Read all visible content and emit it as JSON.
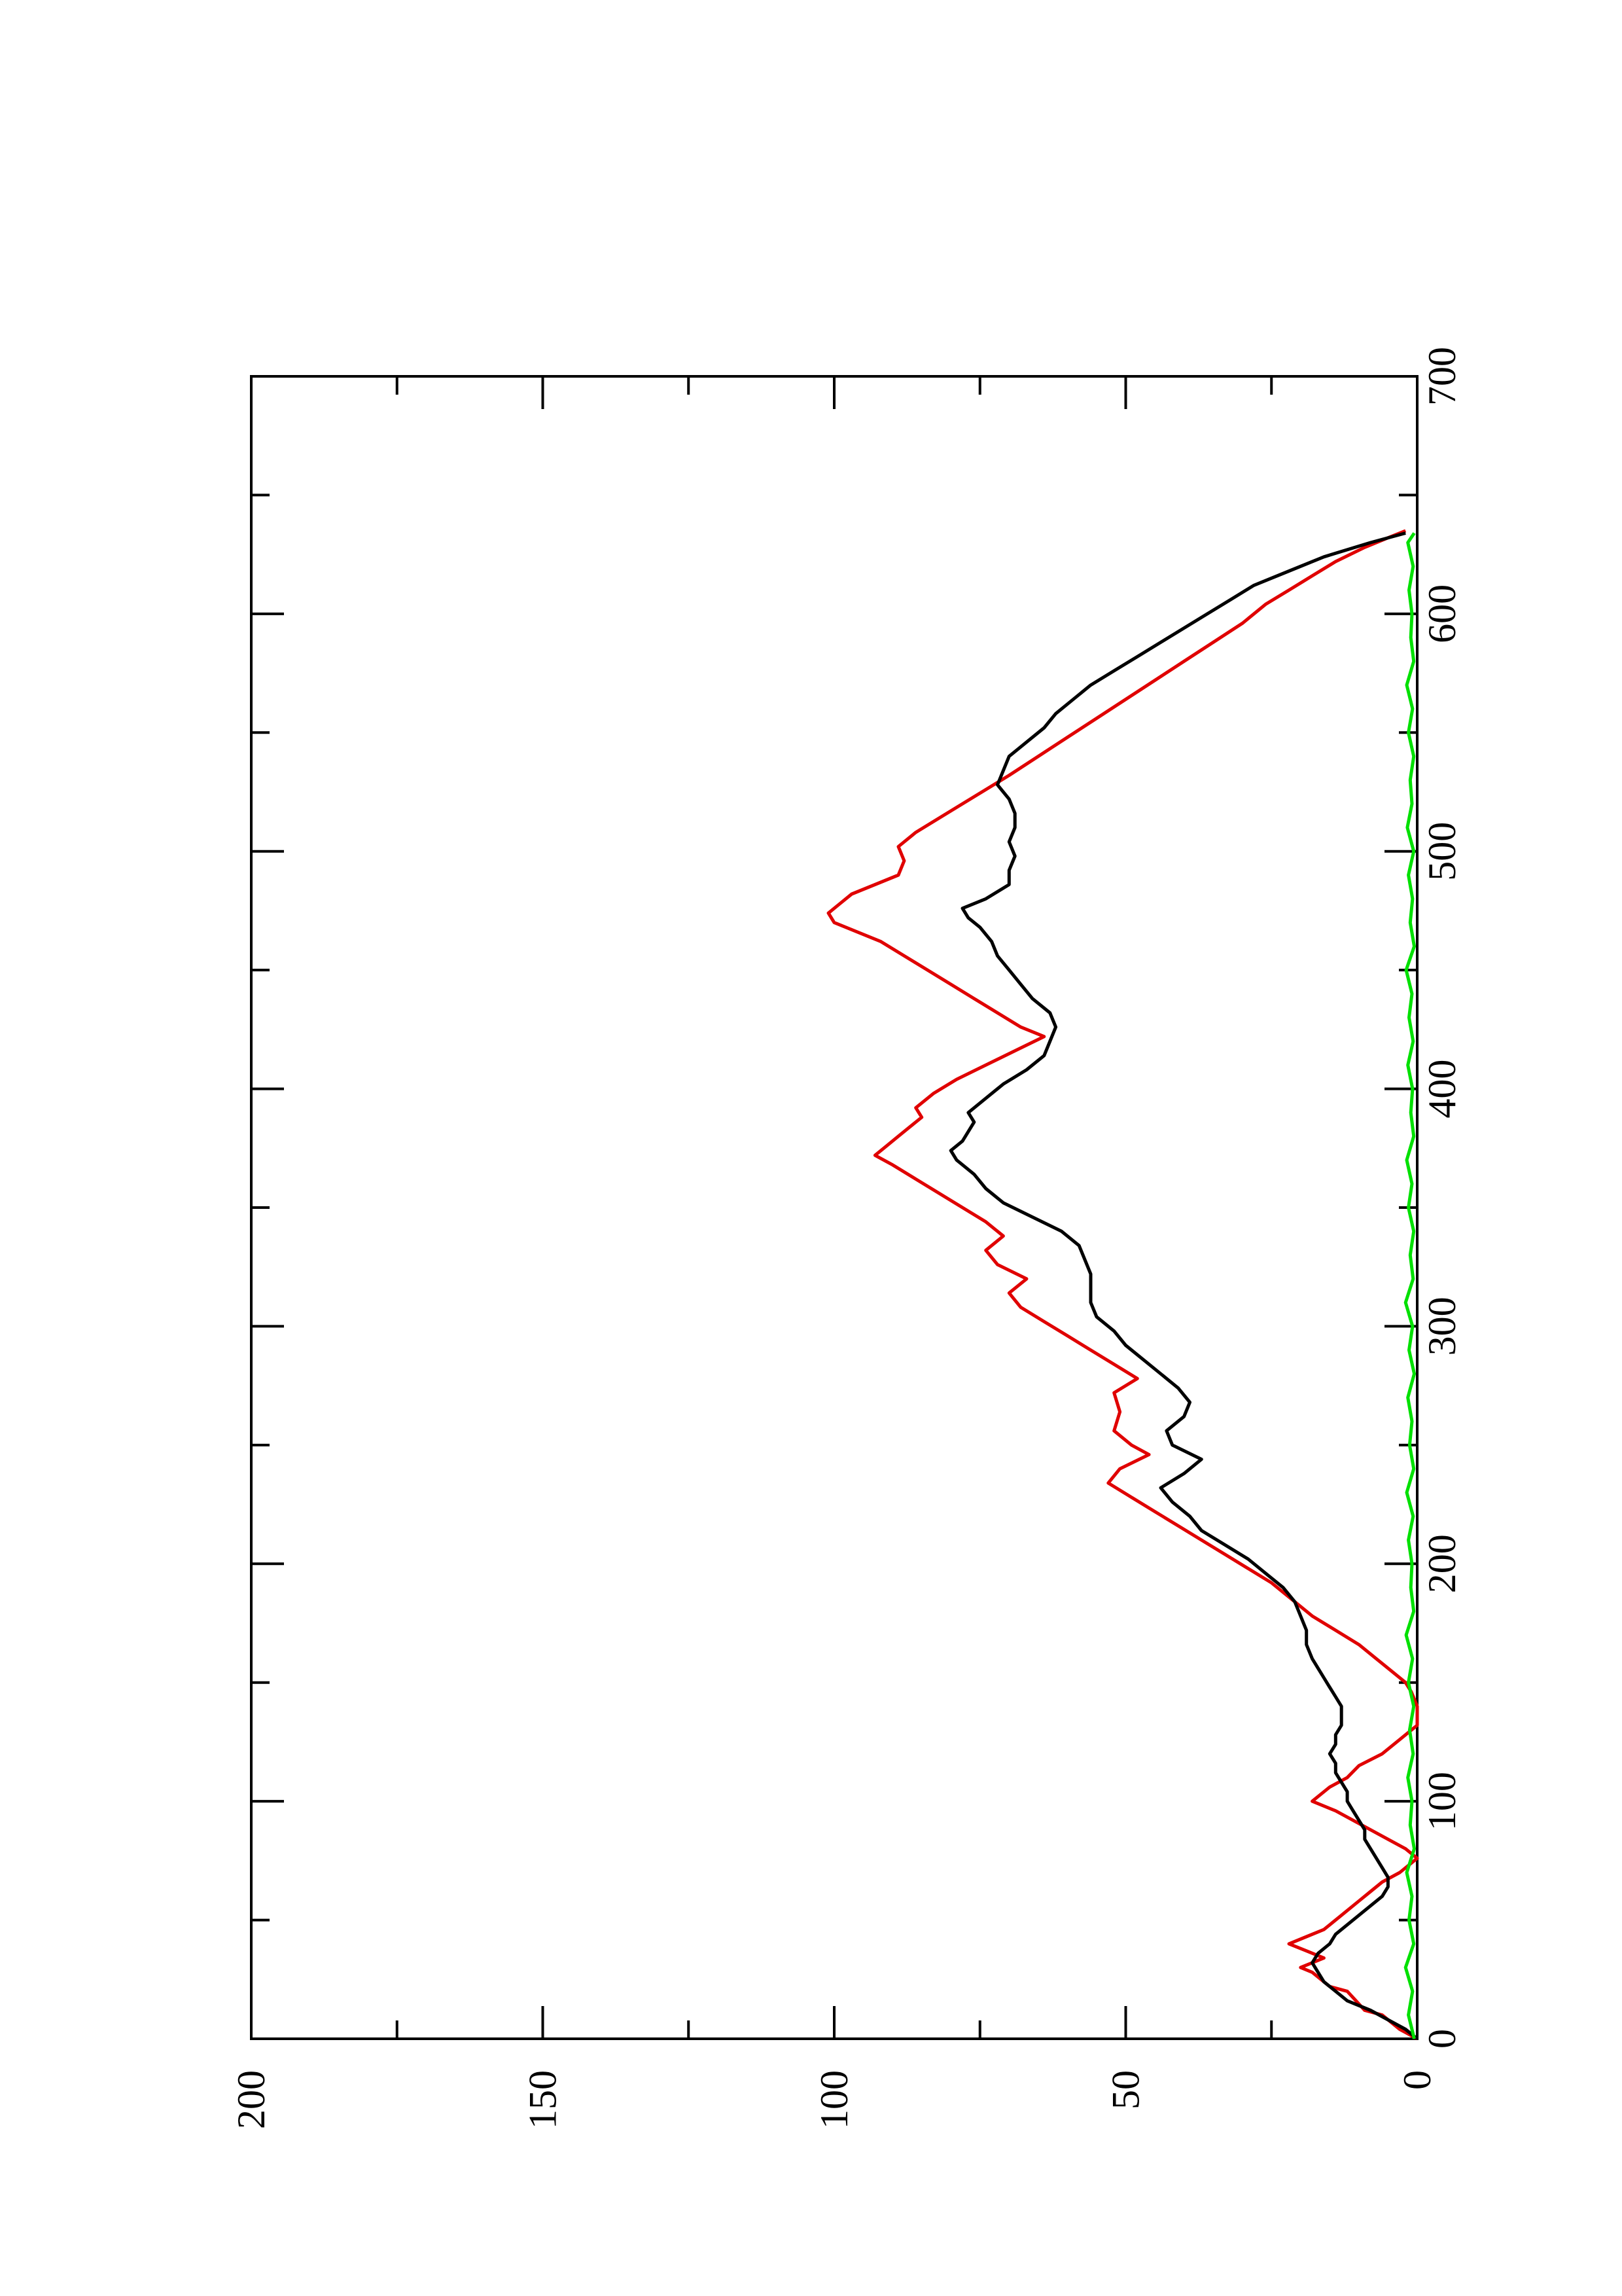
{
  "chart_data": {
    "type": "line",
    "orientation": "rotated-90",
    "title": "",
    "xlabel": "",
    "ylabel": "",
    "xlim": [
      0,
      700
    ],
    "ylim": [
      0,
      200
    ],
    "x_ticks_major": [
      "0",
      "100",
      "200",
      "300",
      "400",
      "500",
      "600",
      "700"
    ],
    "x_ticks_minor_step": 50,
    "y_ticks_major": [
      "0",
      "50",
      "100",
      "150",
      "200"
    ],
    "y_ticks_minor_step": 25,
    "grid": false,
    "legend": "none",
    "series": [
      {
        "color": "#e00000",
        "x": [
          0,
          4,
          10,
          12,
          20,
          22,
          28,
          30,
          34,
          37,
          40,
          43,
          46,
          52,
          58,
          62,
          66,
          70,
          76,
          80,
          84,
          88,
          92,
          96,
          100,
          106,
          110,
          115,
          120,
          126,
          132,
          136,
          140,
          146,
          150,
          154,
          160,
          166,
          172,
          178,
          182,
          186,
          192,
          198,
          204,
          210,
          216,
          222,
          228,
          234,
          240,
          246,
          250,
          256,
          264,
          272,
          278,
          284,
          290,
          296,
          302,
          308,
          314,
          320,
          326,
          332,
          338,
          344,
          350,
          356,
          362,
          368,
          372,
          376,
          380,
          384,
          388,
          392,
          398,
          404,
          410,
          416,
          422,
          426,
          432,
          438,
          444,
          450,
          456,
          462,
          466,
          470,
          474,
          478,
          482,
          486,
          490,
          496,
          502,
          508,
          514,
          520,
          526,
          532,
          540,
          548,
          556,
          564,
          572,
          580,
          588,
          596,
          604,
          610,
          616,
          622,
          628,
          632,
          635
        ],
        "values": [
          0,
          3,
          6,
          9,
          12,
          15,
          18,
          20,
          16,
          19,
          22,
          19,
          16,
          13,
          10,
          8,
          6,
          3,
          0,
          2,
          5,
          8,
          11,
          14,
          18,
          15,
          12,
          10,
          6,
          3,
          0,
          0,
          0,
          1,
          2,
          4,
          7,
          10,
          14,
          18,
          20,
          22,
          25,
          29,
          33,
          37,
          41,
          45,
          49,
          53,
          51,
          46,
          49,
          52,
          51,
          52,
          48,
          52,
          56,
          60,
          64,
          68,
          70,
          67,
          72,
          74,
          71,
          74,
          78,
          82,
          86,
          90,
          93,
          91,
          89,
          87,
          85,
          86,
          83,
          79,
          74,
          69,
          64,
          68,
          72,
          76,
          80,
          84,
          88,
          92,
          96,
          100,
          101,
          99,
          97,
          93,
          89,
          88,
          89,
          86,
          82,
          78,
          74,
          70,
          65,
          60,
          55,
          50,
          45,
          40,
          35,
          30,
          26,
          22,
          18,
          14,
          9,
          5,
          2
        ]
      },
      {
        "color": "#000000",
        "x": [
          0,
          4,
          8,
          12,
          16,
          20,
          24,
          28,
          32,
          36,
          40,
          44,
          48,
          52,
          56,
          60,
          64,
          68,
          72,
          76,
          80,
          84,
          88,
          92,
          96,
          100,
          104,
          108,
          112,
          116,
          120,
          124,
          128,
          132,
          136,
          140,
          144,
          148,
          152,
          156,
          160,
          166,
          172,
          178,
          184,
          190,
          196,
          202,
          208,
          214,
          220,
          226,
          232,
          238,
          244,
          250,
          256,
          262,
          268,
          274,
          280,
          286,
          292,
          298,
          304,
          310,
          316,
          322,
          328,
          334,
          340,
          346,
          352,
          358,
          364,
          370,
          374,
          378,
          382,
          386,
          390,
          396,
          402,
          408,
          414,
          420,
          426,
          432,
          438,
          444,
          450,
          456,
          462,
          468,
          472,
          476,
          480,
          486,
          492,
          498,
          504,
          510,
          516,
          522,
          528,
          534,
          540,
          546,
          552,
          558,
          564,
          570,
          576,
          582,
          588,
          594,
          600,
          606,
          612,
          618,
          624,
          630,
          634
        ],
        "values": [
          0,
          2,
          5,
          8,
          12,
          14,
          16,
          17,
          18,
          17,
          15,
          14,
          12,
          10,
          8,
          6,
          5,
          5,
          6,
          7,
          8,
          9,
          9,
          10,
          11,
          12,
          12,
          13,
          14,
          14,
          15,
          14,
          14,
          13,
          13,
          13,
          14,
          15,
          16,
          17,
          18,
          19,
          19,
          20,
          21,
          23,
          26,
          29,
          33,
          37,
          39,
          42,
          44,
          40,
          37,
          42,
          43,
          40,
          39,
          41,
          44,
          47,
          50,
          52,
          55,
          56,
          56,
          56,
          57,
          58,
          61,
          66,
          71,
          74,
          76,
          79,
          80,
          78,
          77,
          76,
          77,
          74,
          71,
          67,
          64,
          63,
          62,
          63,
          66,
          68,
          70,
          72,
          73,
          75,
          77,
          78,
          74,
          70,
          70,
          69,
          70,
          69,
          69,
          70,
          72,
          71,
          70,
          67,
          64,
          62,
          59,
          56,
          52,
          48,
          44,
          40,
          36,
          32,
          28,
          22,
          16,
          8,
          2
        ]
      },
      {
        "color": "#00e000",
        "x": [
          0,
          10,
          20,
          30,
          40,
          50,
          60,
          70,
          80,
          90,
          100,
          110,
          120,
          130,
          140,
          150,
          160,
          170,
          180,
          190,
          200,
          210,
          220,
          230,
          240,
          250,
          260,
          270,
          280,
          290,
          300,
          310,
          320,
          330,
          340,
          350,
          360,
          370,
          380,
          390,
          400,
          410,
          420,
          430,
          440,
          450,
          460,
          470,
          480,
          490,
          500,
          510,
          520,
          530,
          540,
          550,
          560,
          570,
          580,
          590,
          600,
          610,
          620,
          630,
          634
        ],
        "values": [
          0.5,
          1.5,
          0.8,
          2.0,
          0.6,
          1.4,
          0.9,
          1.8,
          0.5,
          1.2,
          0.9,
          1.6,
          0.7,
          1.3,
          0.6,
          1.5,
          0.8,
          1.9,
          0.6,
          1.1,
          0.9,
          1.5,
          0.7,
          1.8,
          0.6,
          1.3,
          0.9,
          1.6,
          0.5,
          1.4,
          0.8,
          2.0,
          0.7,
          1.2,
          0.6,
          1.5,
          0.9,
          1.8,
          0.6,
          1.1,
          0.8,
          1.6,
          0.7,
          1.4,
          0.9,
          1.9,
          0.5,
          1.2,
          0.8,
          1.5,
          0.6,
          1.7,
          0.9,
          1.2,
          0.6,
          1.5,
          0.8,
          1.8,
          0.6,
          1.1,
          0.9,
          1.4,
          0.7,
          1.6,
          0.5
        ]
      }
    ]
  }
}
